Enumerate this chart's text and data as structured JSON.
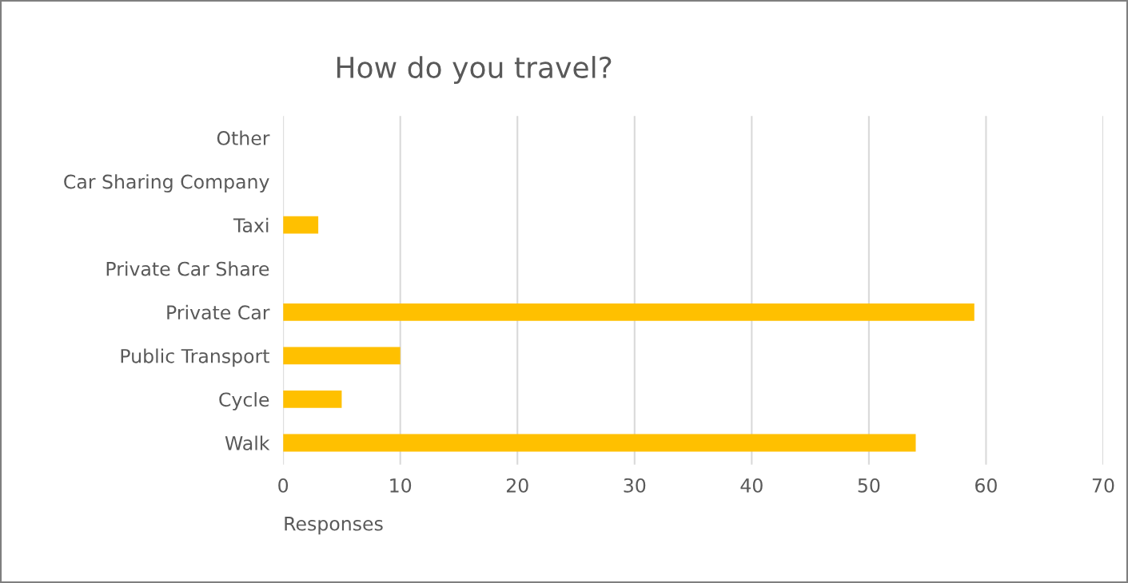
{
  "chart_data": {
    "type": "bar",
    "orientation": "horizontal",
    "title": "How do you travel?",
    "xlabel": "Responses",
    "categories": [
      "Other",
      "Car Sharing Company",
      "Taxi",
      "Private Car Share",
      "Private Car",
      "Public Transport",
      "Cycle",
      "Walk"
    ],
    "values": [
      0,
      0,
      3,
      0,
      59,
      10,
      5,
      54
    ],
    "color": "#ffc000",
    "xlim": [
      0,
      70
    ],
    "xticks": [
      0,
      10,
      20,
      30,
      40,
      50,
      60,
      70
    ],
    "grid": "x"
  }
}
